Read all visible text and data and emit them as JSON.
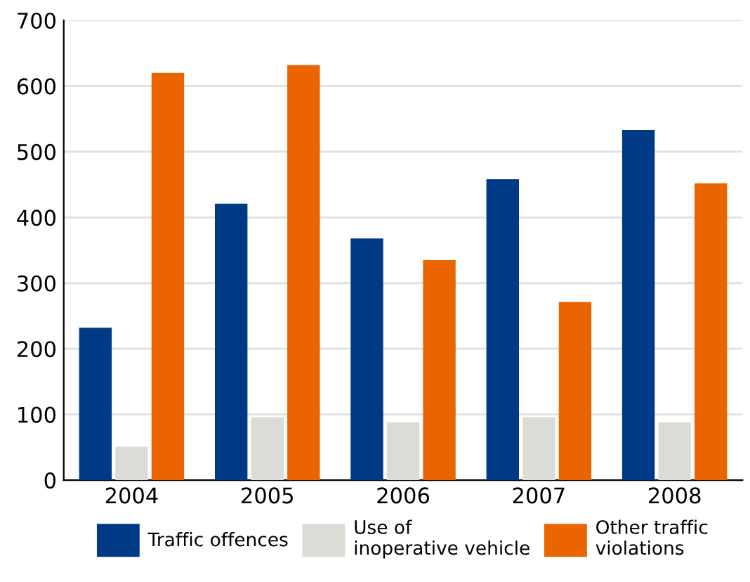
{
  "chart_data": {
    "type": "bar",
    "categories": [
      "2004",
      "2005",
      "2006",
      "2007",
      "2008"
    ],
    "series": [
      {
        "name": "Traffic offences",
        "color": "#003a87",
        "values": [
          232,
          421,
          368,
          458,
          533
        ]
      },
      {
        "name": "Use of\ninoperative vehicle",
        "color": "#dcdcd6",
        "values": [
          51,
          96,
          88,
          96,
          88
        ]
      },
      {
        "name": "Other traffic\nviolations",
        "color": "#ea6500",
        "values": [
          620,
          632,
          335,
          271,
          452
        ]
      }
    ],
    "ylim": [
      0,
      700
    ],
    "yticks": [
      0,
      100,
      200,
      300,
      400,
      500,
      600,
      700
    ],
    "grid": "y",
    "legend": "bottom"
  }
}
